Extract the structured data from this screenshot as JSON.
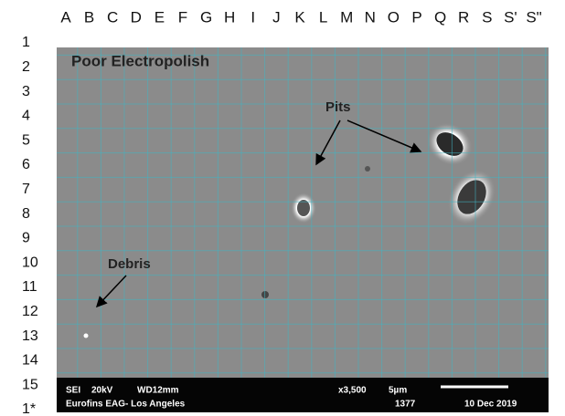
{
  "header": {
    "columns": [
      "A",
      "B",
      "C",
      "D",
      "E",
      "F",
      "G",
      "H",
      "I",
      "J",
      "K",
      "L",
      "M",
      "N",
      "O",
      "P",
      "Q",
      "R",
      "S",
      "S'",
      "S\""
    ]
  },
  "rows": [
    "1",
    "2",
    "3",
    "4",
    "5",
    "6",
    "7",
    "8",
    "9",
    "10",
    "11",
    "12",
    "13",
    "14",
    "15",
    "1*"
  ],
  "image": {
    "title": "Poor Electropolish",
    "annotations": [
      "Pits",
      "Debris"
    ],
    "info_bar": {
      "mode": "SEI",
      "voltage": "20kV",
      "working_distance": "WD12mm",
      "magnification": "x3,500",
      "scale": "5µm",
      "lab": "Eurofins EAG- Los Angeles",
      "image_number": "1377",
      "date": "10 Dec 2019"
    }
  }
}
